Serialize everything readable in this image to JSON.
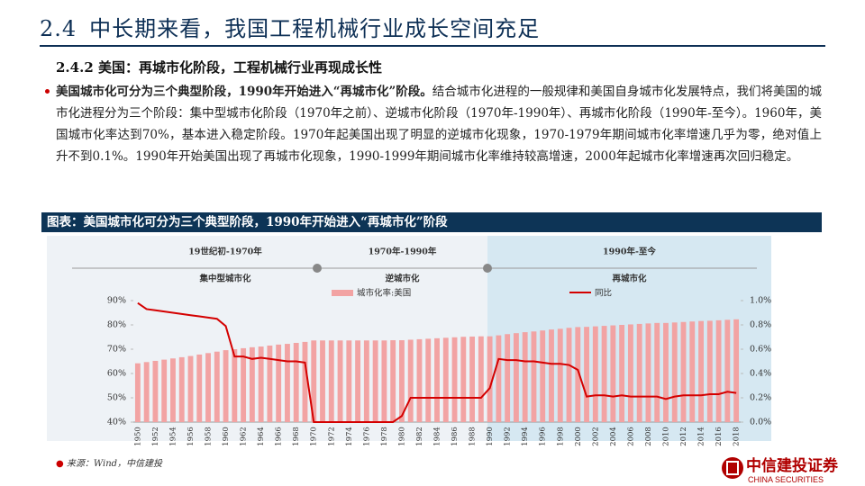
{
  "header": {
    "number": "2.4",
    "title": "中长期来看，我国工程机械行业成长空间充足"
  },
  "section": {
    "title": "2.4.2 美国：再城市化阶段，工程机械行业再现成长性",
    "lead": "美国城市化可分为三个典型阶段，1990年开始进入“再城市化”阶段。",
    "body": "结合城市化进程的一般规律和美国自身城市化发展特点，我们将美国的城市化进程分为三个阶段：集中型城市化阶段（1970年之前）、逆城市化阶段（1970年-1990年）、再城市化阶段（1990年-至今）。1960年，美国城市化率达到70%，基本进入稳定阶段。1970年起美国出现了明显的逆城市化现象，1970-1979年期间城市化率增速几乎为零，绝对值上升不到0.1%。1990年开始美国出现了再城市化现象，1990-1999年期间城市化率维持较高增速，2000年起城市化率增速再次回归稳定。"
  },
  "figure": {
    "caption": "图表：美国城市化可分为三个典型阶段，1990年开始进入“再城市化”阶段",
    "source": "来源：Wind，中信建投"
  },
  "logo": {
    "name": "中信建投证券",
    "en": "CHINA SECURITIES"
  },
  "chart_data": {
    "type": "bar-line",
    "phases": [
      {
        "period": "19世纪初-1970年",
        "name": "集中型城市化"
      },
      {
        "period": "1970年-1990年",
        "name": "逆城市化"
      },
      {
        "period": "1990年-至今",
        "name": "再城市化"
      }
    ],
    "categories": [
      "1950",
      null,
      "1952",
      null,
      "1954",
      null,
      "1956",
      null,
      "1958",
      null,
      "1960",
      null,
      "1962",
      null,
      "1964",
      null,
      "1966",
      null,
      "1968",
      null,
      "1970",
      null,
      "1972",
      null,
      "1974",
      null,
      "1976",
      null,
      "1978",
      null,
      "1980",
      null,
      "1982",
      null,
      "1984",
      null,
      "1986",
      null,
      "1988",
      null,
      "1990",
      null,
      "1992",
      null,
      "1994",
      null,
      "1996",
      null,
      "1998",
      null,
      "2000",
      null,
      "2002",
      null,
      "2004",
      null,
      "2006",
      null,
      "2008",
      null,
      "2010",
      null,
      "2012",
      null,
      "2014",
      null,
      "2016",
      null,
      "2018"
    ],
    "series": [
      {
        "name": "城市化率:美国",
        "type": "bar",
        "color": "#f2a3a3",
        "values": [
          64.2,
          64.7,
          65.2,
          65.7,
          66.2,
          66.7,
          67.2,
          67.8,
          68.4,
          69.0,
          69.6,
          70.0,
          70.4,
          70.8,
          71.1,
          71.5,
          71.9,
          72.2,
          72.6,
          73.0,
          73.6,
          73.6,
          73.6,
          73.6,
          73.6,
          73.6,
          73.6,
          73.6,
          73.6,
          73.7,
          73.7,
          73.9,
          74.1,
          74.3,
          74.5,
          74.7,
          74.9,
          75.1,
          75.2,
          75.3,
          75.3,
          75.7,
          76.2,
          76.6,
          77.0,
          77.3,
          77.7,
          78.1,
          78.4,
          78.8,
          79.1,
          79.2,
          79.4,
          79.6,
          79.8,
          80.0,
          80.2,
          80.4,
          80.6,
          80.8,
          80.8,
          81.0,
          81.2,
          81.4,
          81.6,
          81.7,
          81.9,
          82.1,
          82.3
        ]
      },
      {
        "name": "同比",
        "type": "line",
        "axis": "y2",
        "color": "#d40000",
        "values": [
          0.98,
          0.93,
          0.92,
          0.91,
          0.9,
          0.89,
          0.88,
          0.87,
          0.86,
          0.85,
          0.79,
          0.54,
          0.54,
          0.52,
          0.53,
          0.52,
          0.51,
          0.5,
          0.5,
          0.49,
          0.0,
          0.0,
          0.0,
          0.0,
          0.0,
          0.0,
          0.0,
          0.0,
          0.0,
          0.0,
          0.05,
          0.2,
          0.2,
          0.2,
          0.2,
          0.2,
          0.2,
          0.2,
          0.2,
          0.2,
          0.28,
          0.52,
          0.51,
          0.51,
          0.5,
          0.5,
          0.49,
          0.48,
          0.48,
          0.47,
          0.43,
          0.21,
          0.22,
          0.22,
          0.21,
          0.22,
          0.21,
          0.21,
          0.21,
          0.21,
          0.19,
          0.21,
          0.22,
          0.22,
          0.22,
          0.23,
          0.23,
          0.25,
          0.24
        ]
      }
    ],
    "ylim": [
      40,
      90
    ],
    "yticks": [
      {
        "value": 40,
        "label": "40%"
      },
      {
        "value": 50,
        "label": "50%"
      },
      {
        "value": 60,
        "label": "60%"
      },
      {
        "value": 70,
        "label": "70%"
      },
      {
        "value": 80,
        "label": "80%"
      },
      {
        "value": 90,
        "label": "90%"
      }
    ],
    "y2lim": [
      0,
      1.0
    ],
    "y2ticks": [
      {
        "value": 0,
        "label": "0.0%"
      },
      {
        "value": 0.2,
        "label": "0.2%"
      },
      {
        "value": 0.4,
        "label": "0.4%"
      },
      {
        "value": 0.6,
        "label": "0.6%"
      },
      {
        "value": 0.8,
        "label": "0.8%"
      },
      {
        "value": 1.0,
        "label": "1.0%"
      }
    ]
  }
}
